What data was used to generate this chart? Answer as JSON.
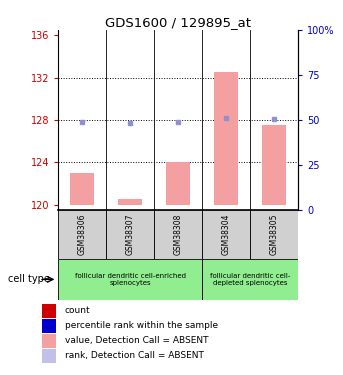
{
  "title": "GDS1600 / 129895_at",
  "samples": [
    "GSM38306",
    "GSM38307",
    "GSM38308",
    "GSM38304",
    "GSM38305"
  ],
  "ylim_left": [
    119.5,
    136.5
  ],
  "ylim_right": [
    0,
    100
  ],
  "yticks_left": [
    120,
    124,
    128,
    132,
    136
  ],
  "yticks_right": [
    0,
    25,
    50,
    75,
    100
  ],
  "bar_values": [
    123.0,
    120.5,
    124.0,
    132.5,
    127.5
  ],
  "dot_values": [
    127.8,
    127.7,
    127.8,
    128.2,
    128.1
  ],
  "bar_color": "#f5a0a0",
  "dot_color": "#9090d0",
  "left_tick_color": "#cc0000",
  "right_tick_color": "#0000cc",
  "legend_colors": [
    "#cc0000",
    "#0000cc",
    "#f5a0a0",
    "#c0c0e8"
  ],
  "legend_labels": [
    "count",
    "percentile rank within the sample",
    "value, Detection Call = ABSENT",
    "rank, Detection Call = ABSENT"
  ],
  "cell_type_label": "cell type",
  "base_value": 120.0,
  "group1_label": "follicular dendritic cell-enriched\nsplenocytes",
  "group2_label": "follicular dendritic cell-\ndepleted splenocytes",
  "group_color": "#90ee90",
  "sample_box_color": "#d0d0d0",
  "grid_lines": [
    132,
    128,
    124
  ]
}
